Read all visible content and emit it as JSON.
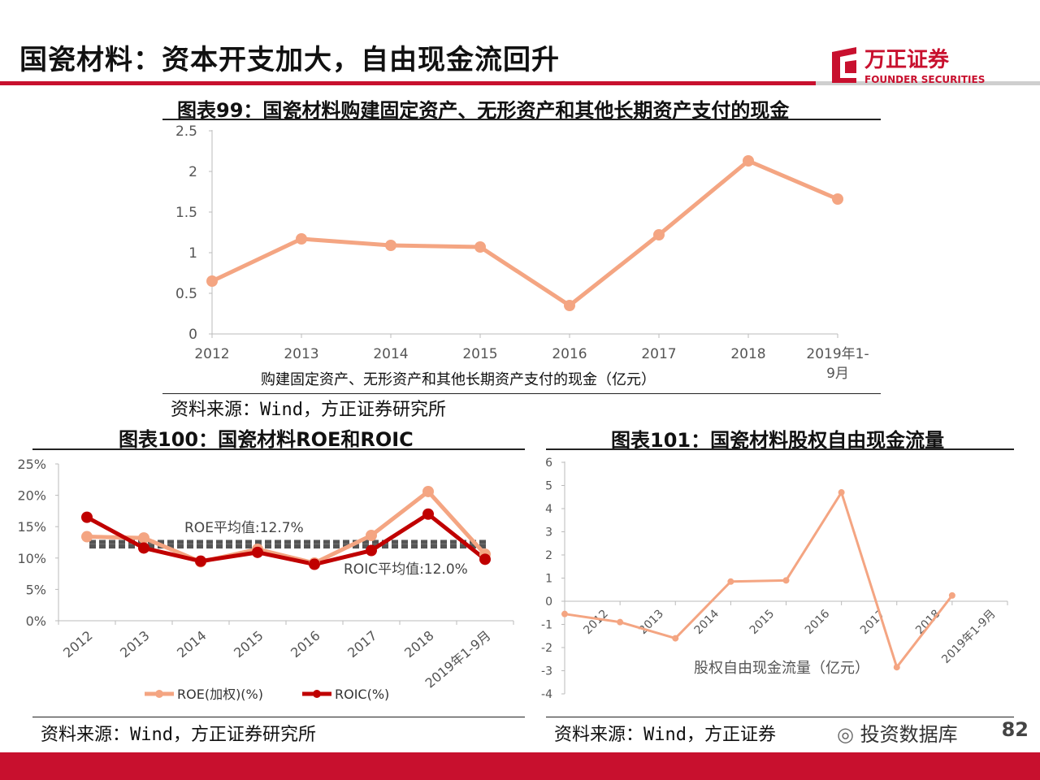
{
  "header": {
    "title": "国瓷材料：资本开支加大，自由现金流回升",
    "logo_cn": "万正证券",
    "logo_en": "FOUNDER SECURITIES"
  },
  "colors": {
    "brand_red": "#c8102e",
    "salmon": "#f4a582",
    "dark_red": "#c00000",
    "dash_gray": "#555555"
  },
  "figure99": {
    "title": "图表99：国瓷材料购建固定资产、无形资产和其他长期资产支付的现金",
    "source": "资料来源：Wind，方正证券研究所",
    "chart_data": {
      "type": "line",
      "categories": [
        "2012",
        "2013",
        "2014",
        "2015",
        "2016",
        "2017",
        "2018",
        "2019年1-9月"
      ],
      "series": [
        {
          "name": "购建固定资产、无形资产和其他长期资产支付的现金（亿元）",
          "values": [
            0.65,
            1.17,
            1.09,
            1.07,
            0.35,
            1.22,
            2.13,
            1.66
          ]
        }
      ],
      "ylim": [
        0,
        2.5
      ],
      "yticks": [
        "0",
        "0.5",
        "1",
        "1.5",
        "2",
        "2.5"
      ],
      "grid": false,
      "legend": "bottom"
    }
  },
  "figure100": {
    "title": "图表100：国瓷材料ROE和ROIC",
    "source": "资料来源：Wind，方正证券研究所",
    "chart_data": {
      "type": "line",
      "categories": [
        "2012",
        "2013",
        "2014",
        "2015",
        "2016",
        "2017",
        "2018",
        "2019年1-9月"
      ],
      "series": [
        {
          "name": "ROE(加权)(%)",
          "values": [
            13.4,
            13.2,
            9.4,
            11.4,
            9.2,
            13.6,
            20.6,
            10.6
          ]
        },
        {
          "name": "ROIC(%)",
          "values": [
            16.5,
            11.6,
            9.5,
            10.9,
            9.0,
            11.2,
            17.0,
            9.8
          ]
        }
      ],
      "reference_lines": [
        {
          "label": "ROE平均值:12.7%",
          "value": 12.7
        },
        {
          "label": "ROIC平均值:12.0%",
          "value": 12.0
        }
      ],
      "extra_dashed": [
        12.4,
        11.7
      ],
      "ylim": [
        0,
        25
      ],
      "yticks": [
        "0%",
        "5%",
        "10%",
        "15%",
        "20%",
        "25%"
      ],
      "grid": false,
      "legend": "bottom"
    }
  },
  "figure101": {
    "title": "图表101：国瓷材料股权自由现金流量",
    "source": "资料来源：Wind，方正证券",
    "chart_data": {
      "type": "line",
      "categories": [
        "2012",
        "2013",
        "2014",
        "2015",
        "2016",
        "2017",
        "2018",
        "2019年1-9月"
      ],
      "series": [
        {
          "name": "股权自由现金流量（亿元）",
          "values": [
            -0.55,
            -0.9,
            -1.6,
            0.85,
            0.9,
            4.7,
            -2.85,
            0.25
          ]
        }
      ],
      "ylim": [
        -4,
        6
      ],
      "yticks": [
        "-4",
        "-3",
        "-2",
        "-1",
        "0",
        "1",
        "2",
        "3",
        "4",
        "5",
        "6"
      ],
      "grid": false,
      "legend": "bottom"
    }
  },
  "footer": {
    "page_number": "82",
    "watermark": "投资数据库"
  }
}
